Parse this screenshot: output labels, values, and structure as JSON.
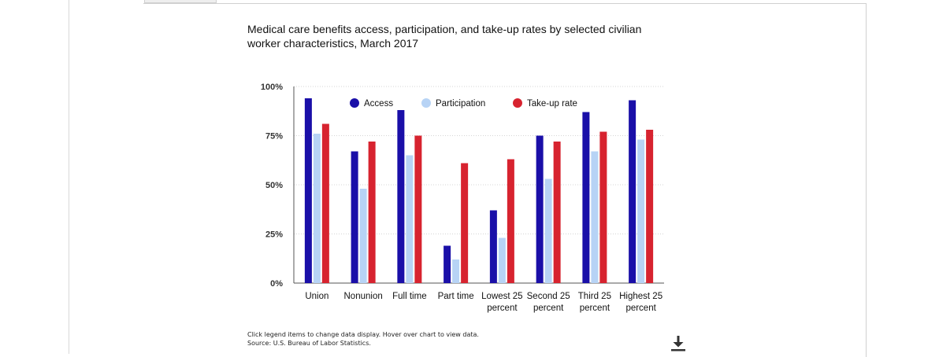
{
  "title": "Medical care benefits access, participation, and take-up rates by selected civilian worker characteristics, March 2017",
  "chart_data": {
    "type": "bar",
    "categories": [
      [
        "Union"
      ],
      [
        "Nonunion"
      ],
      [
        "Full time"
      ],
      [
        "Part time"
      ],
      [
        "Lowest 25",
        "percent"
      ],
      [
        "Second 25",
        "percent"
      ],
      [
        "Third 25",
        "percent"
      ],
      [
        "Highest 25",
        "percent"
      ]
    ],
    "series": [
      {
        "name": "Access",
        "color": "#1a0fa8",
        "values": [
          94,
          67,
          88,
          19,
          37,
          75,
          87,
          93
        ]
      },
      {
        "name": "Participation",
        "color": "#b7d3f5",
        "values": [
          76,
          48,
          65,
          12,
          23,
          53,
          67,
          73
        ]
      },
      {
        "name": "Take-up rate",
        "color": "#d7232f",
        "values": [
          81,
          72,
          75,
          61,
          63,
          72,
          77,
          78
        ]
      }
    ],
    "yticks": [
      "0%",
      "25%",
      "50%",
      "75%",
      "100%"
    ],
    "ylim": [
      0,
      100
    ],
    "grid": true,
    "legend": "top"
  },
  "footnotes": {
    "instruction": "Click legend items to change data display. Hover over chart to view data.",
    "source": "Source: U.S. Bureau of Labor Statistics."
  },
  "icons": {
    "download": "download-icon"
  }
}
